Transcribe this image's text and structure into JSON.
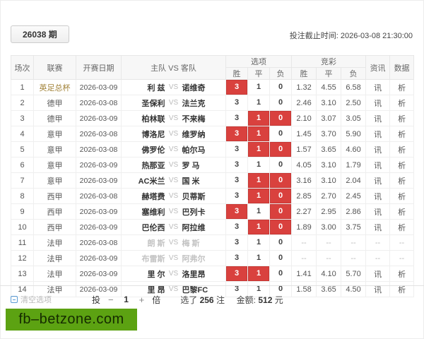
{
  "header": {
    "period_label": "26038 期",
    "deadline_label": "投注截止时间: 2026-03-08 21:30:00"
  },
  "table": {
    "columns": {
      "match_no": "场次",
      "league": "联赛",
      "date": "开赛日期",
      "teams": "主队 VS 客队",
      "options_group": "选项",
      "odds_group": "竞彩",
      "win": "胜",
      "draw": "平",
      "lose": "负",
      "info": "资讯",
      "data": "数据"
    },
    "vs_label": "VS",
    "option_values": [
      "3",
      "1",
      "0"
    ],
    "rows": [
      {
        "no": "1",
        "league": "英足总杯",
        "league_accent": true,
        "date": "2026-03-09",
        "home": "利 兹",
        "away": "诺维奇",
        "sel": [
          1,
          0,
          0
        ],
        "odds": [
          "1.32",
          "4.55",
          "6.58"
        ],
        "info": "讯",
        "analysis": "析",
        "muted": false
      },
      {
        "no": "2",
        "league": "德甲",
        "league_accent": false,
        "date": "2026-03-08",
        "home": "圣保利",
        "away": "法兰克",
        "sel": [
          0,
          0,
          0
        ],
        "odds": [
          "2.46",
          "3.10",
          "2.50"
        ],
        "info": "讯",
        "analysis": "析",
        "muted": false
      },
      {
        "no": "3",
        "league": "德甲",
        "league_accent": false,
        "date": "2026-03-09",
        "home": "柏林联",
        "away": "不来梅",
        "sel": [
          0,
          1,
          1
        ],
        "odds": [
          "2.10",
          "3.07",
          "3.05"
        ],
        "info": "讯",
        "analysis": "析",
        "muted": false
      },
      {
        "no": "4",
        "league": "意甲",
        "league_accent": false,
        "date": "2026-03-08",
        "home": "博洛尼",
        "away": "维罗纳",
        "sel": [
          1,
          1,
          0
        ],
        "odds": [
          "1.45",
          "3.70",
          "5.90"
        ],
        "info": "讯",
        "analysis": "析",
        "muted": false
      },
      {
        "no": "5",
        "league": "意甲",
        "league_accent": false,
        "date": "2026-03-08",
        "home": "佛罗伦",
        "away": "帕尔马",
        "sel": [
          0,
          1,
          1
        ],
        "odds": [
          "1.57",
          "3.65",
          "4.60"
        ],
        "info": "讯",
        "analysis": "析",
        "muted": false
      },
      {
        "no": "6",
        "league": "意甲",
        "league_accent": false,
        "date": "2026-03-09",
        "home": "热那亚",
        "away": "罗 马",
        "sel": [
          0,
          0,
          0
        ],
        "odds": [
          "4.05",
          "3.10",
          "1.79"
        ],
        "info": "讯",
        "analysis": "析",
        "muted": false
      },
      {
        "no": "7",
        "league": "意甲",
        "league_accent": false,
        "date": "2026-03-09",
        "home": "AC米兰",
        "away": "国 米",
        "sel": [
          0,
          1,
          1
        ],
        "odds": [
          "3.16",
          "3.10",
          "2.04"
        ],
        "info": "讯",
        "analysis": "析",
        "muted": false
      },
      {
        "no": "8",
        "league": "西甲",
        "league_accent": false,
        "date": "2026-03-08",
        "home": "赫塔费",
        "away": "贝蒂斯",
        "sel": [
          0,
          1,
          1
        ],
        "odds": [
          "2.85",
          "2.70",
          "2.45"
        ],
        "info": "讯",
        "analysis": "析",
        "muted": false
      },
      {
        "no": "9",
        "league": "西甲",
        "league_accent": false,
        "date": "2026-03-09",
        "home": "塞维利",
        "away": "巴列卡",
        "sel": [
          1,
          0,
          1
        ],
        "odds": [
          "2.27",
          "2.95",
          "2.86"
        ],
        "info": "讯",
        "analysis": "析",
        "muted": false
      },
      {
        "no": "10",
        "league": "西甲",
        "league_accent": false,
        "date": "2026-03-09",
        "home": "巴伦西",
        "away": "阿拉维",
        "sel": [
          0,
          1,
          1
        ],
        "odds": [
          "1.89",
          "3.00",
          "3.75"
        ],
        "info": "讯",
        "analysis": "析",
        "muted": false
      },
      {
        "no": "11",
        "league": "法甲",
        "league_accent": false,
        "date": "2026-03-08",
        "home": "朗 斯",
        "away": "梅 斯",
        "sel": [
          0,
          0,
          0
        ],
        "odds": [
          "--",
          "--",
          "--"
        ],
        "info": "--",
        "analysis": "--",
        "muted": true
      },
      {
        "no": "12",
        "league": "法甲",
        "league_accent": false,
        "date": "2026-03-09",
        "home": "布雷斯",
        "away": "阿弗尔",
        "sel": [
          0,
          0,
          0
        ],
        "odds": [
          "--",
          "--",
          "--"
        ],
        "info": "--",
        "analysis": "--",
        "muted": true
      },
      {
        "no": "13",
        "league": "法甲",
        "league_accent": false,
        "date": "2026-03-09",
        "home": "里 尔",
        "away": "洛里昂",
        "sel": [
          1,
          1,
          0
        ],
        "odds": [
          "1.41",
          "4.10",
          "5.70"
        ],
        "info": "讯",
        "analysis": "析",
        "muted": false
      },
      {
        "no": "14",
        "league": "法甲",
        "league_accent": false,
        "date": "2026-03-09",
        "home": "里 昂",
        "away": "巴黎FC",
        "sel": [
          0,
          0,
          0
        ],
        "odds": [
          "1.58",
          "3.65",
          "4.50"
        ],
        "info": "讯",
        "analysis": "析",
        "muted": false
      }
    ]
  },
  "footer": {
    "clear_label": "清空选项",
    "stake_prefix": "投",
    "minus_label": "−",
    "multiplier_value": "1",
    "plus_label": "+",
    "stake_suffix": "倍",
    "selected_prefix": "选了",
    "selected_count": "256",
    "selected_unit": "注",
    "amount_label": "金额:",
    "amount_value": "512",
    "amount_unit": "元"
  },
  "watermark": {
    "text": "fb–betzone.com",
    "bg_color": "#5ca212"
  },
  "colors": {
    "selected_option": "#d9413e",
    "league_accent": "#a08035"
  }
}
